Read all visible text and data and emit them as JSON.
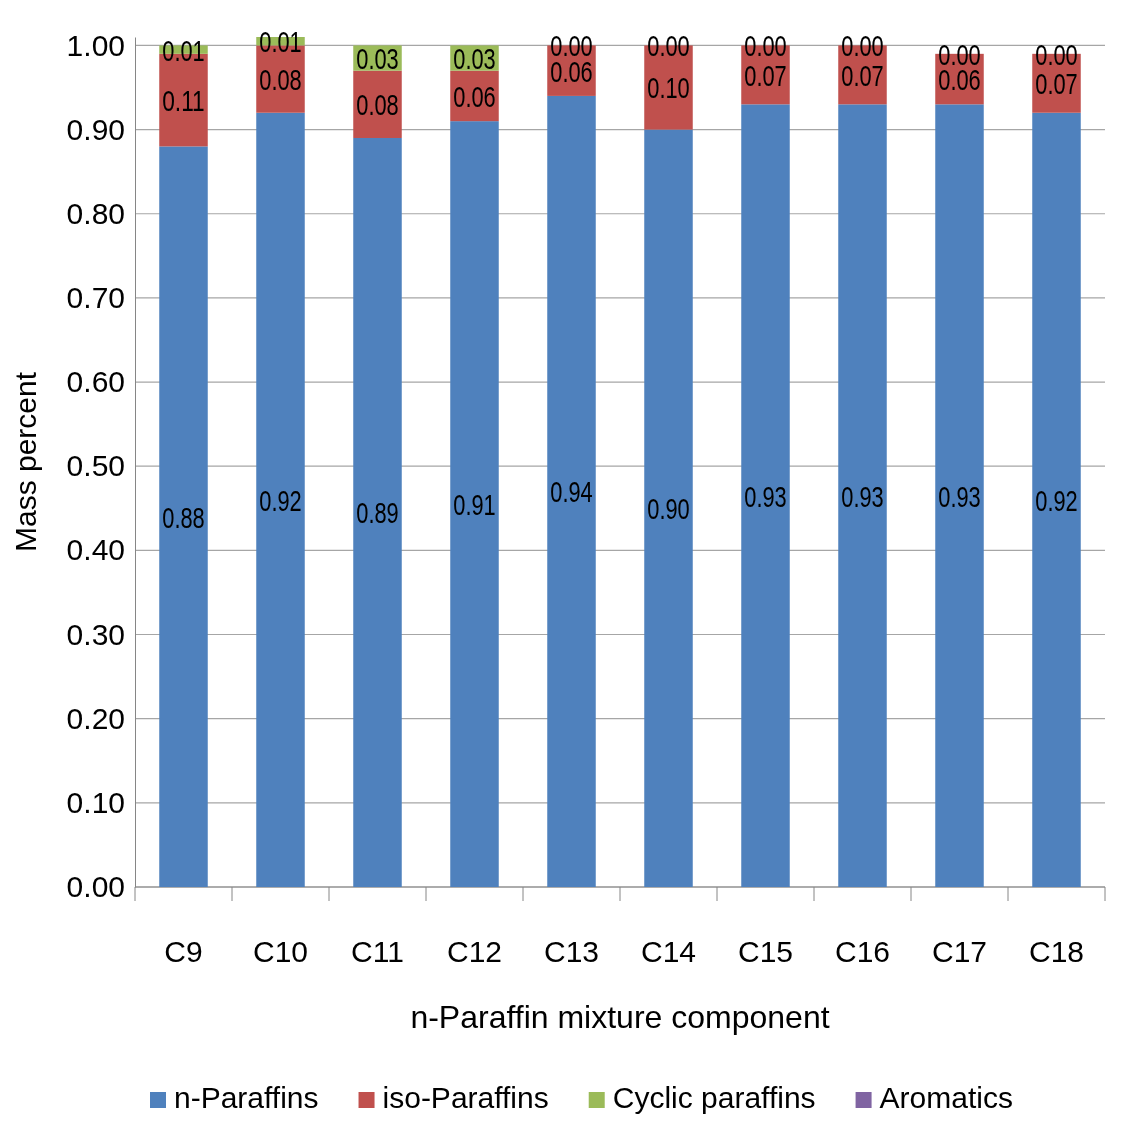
{
  "chart_data": {
    "type": "bar",
    "stacked": true,
    "xlabel": "n-Paraffin mixture component",
    "ylabel": "Mass percent",
    "categories": [
      "C9",
      "C10",
      "C11",
      "C12",
      "C13",
      "C14",
      "C15",
      "C16",
      "C17",
      "C18"
    ],
    "series": [
      {
        "name": "n-Paraffins",
        "color": "#4f81bd",
        "values": [
          0.88,
          0.92,
          0.89,
          0.91,
          0.94,
          0.9,
          0.93,
          0.93,
          0.93,
          0.92
        ],
        "value_labels": [
          "0.88",
          "0.92",
          "0.89",
          "0.91",
          "0.94",
          "0.90",
          "0.93",
          "0.93",
          "0.93",
          "0.92"
        ]
      },
      {
        "name": "iso-Paraffins",
        "color": "#c0504d",
        "values": [
          0.11,
          0.08,
          0.08,
          0.06,
          0.06,
          0.1,
          0.07,
          0.07,
          0.06,
          0.07
        ],
        "value_labels": [
          "0.11",
          "0.08",
          "0.08",
          "0.06",
          "0.06",
          "0.10",
          "0.07",
          "0.07",
          "0.06",
          "0.07"
        ]
      },
      {
        "name": "Cyclic paraffins",
        "color": "#9bbb59",
        "values": [
          0.01,
          0.01,
          0.03,
          0.03,
          0.0,
          0.0,
          0.0,
          0.0,
          0.0,
          0.0
        ],
        "value_labels": [
          "0.01",
          "0.01",
          "0.03",
          "0.03",
          "0.00",
          "0.00",
          "0.00",
          "0.00",
          "0.00",
          "0.00"
        ]
      },
      {
        "name": "Aromatics",
        "color": "#8064a2",
        "values": [
          0,
          0,
          0,
          0,
          0,
          0,
          0,
          0,
          0,
          0
        ]
      }
    ],
    "ylim": [
      0,
      1.01
    ],
    "yticks": [
      {
        "value": 0,
        "label": "0.00"
      },
      {
        "value": 0.1,
        "label": "0.10"
      },
      {
        "value": 0.2,
        "label": "0.20"
      },
      {
        "value": 0.3,
        "label": "0.30"
      },
      {
        "value": 0.4,
        "label": "0.40"
      },
      {
        "value": 0.5,
        "label": "0.50"
      },
      {
        "value": 0.6,
        "label": "0.60"
      },
      {
        "value": 0.7,
        "label": "0.70"
      },
      {
        "value": 0.8,
        "label": "0.80"
      },
      {
        "value": 0.9,
        "label": "0.90"
      },
      {
        "value": 1,
        "label": "1.00"
      }
    ],
    "grid": "y",
    "legend": "bottom"
  }
}
